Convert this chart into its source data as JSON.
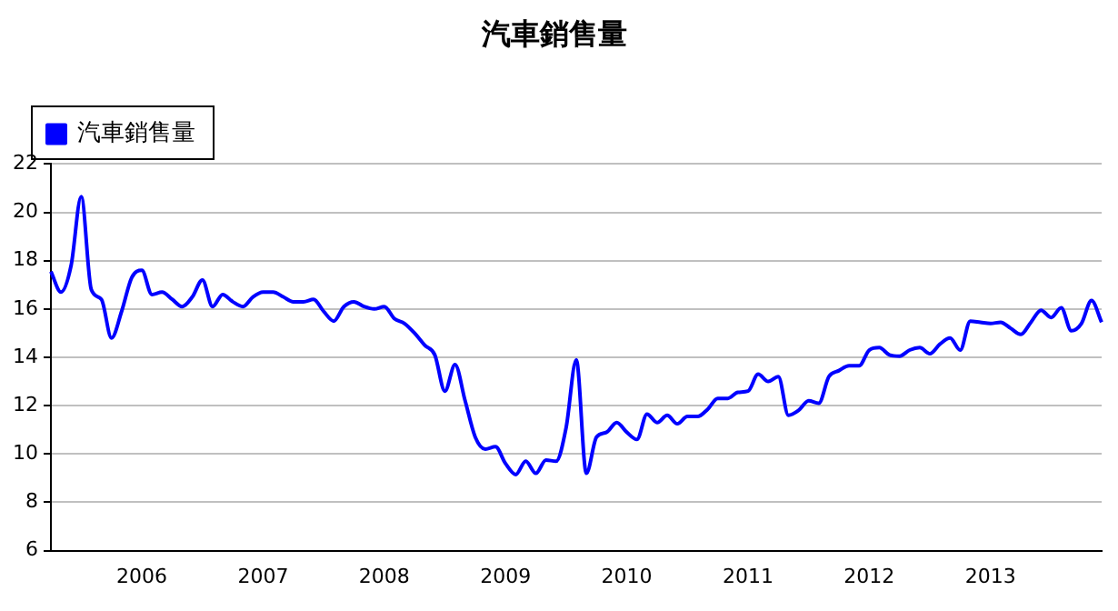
{
  "chart_data": {
    "type": "line",
    "title": "汽車銷售量",
    "categories": [
      null,
      null,
      null,
      null,
      null,
      null,
      null,
      null,
      null,
      "2006",
      null,
      null,
      null,
      null,
      null,
      null,
      null,
      null,
      null,
      null,
      null,
      "2007",
      null,
      null,
      null,
      null,
      null,
      null,
      null,
      null,
      null,
      null,
      null,
      "2008",
      null,
      null,
      null,
      null,
      null,
      null,
      null,
      null,
      null,
      null,
      null,
      "2009",
      null,
      null,
      null,
      null,
      null,
      null,
      null,
      null,
      null,
      null,
      null,
      "2010",
      null,
      null,
      null,
      null,
      null,
      null,
      null,
      null,
      null,
      null,
      null,
      "2011",
      null,
      null,
      null,
      null,
      null,
      null,
      null,
      null,
      null,
      null,
      null,
      "2012",
      null,
      null,
      null,
      null,
      null,
      null,
      null,
      null,
      null,
      null,
      null,
      "2013",
      null,
      null,
      null,
      null,
      null,
      null,
      null,
      null,
      null,
      null,
      null
    ],
    "series": [
      {
        "name": "汽車銷售量",
        "color": "#0000ff",
        "values": [
          17.55,
          16.7,
          17.8,
          20.65,
          16.8,
          16.4,
          14.8,
          15.9,
          17.3,
          17.6,
          16.6,
          16.7,
          16.4,
          16.1,
          16.5,
          17.2,
          16.1,
          16.6,
          16.3,
          16.1,
          16.5,
          16.7,
          16.7,
          16.5,
          16.3,
          16.3,
          16.4,
          15.9,
          15.5,
          16.1,
          16.3,
          16.1,
          16.0,
          16.1,
          15.6,
          15.4,
          15.0,
          14.5,
          14.1,
          12.6,
          13.7,
          12.2,
          10.7,
          10.2,
          10.3,
          9.6,
          9.15,
          9.7,
          9.2,
          9.75,
          9.7,
          11.1,
          13.9,
          9.2,
          10.7,
          10.9,
          11.3,
          10.9,
          10.6,
          11.65,
          11.3,
          11.6,
          11.25,
          11.55,
          11.55,
          11.85,
          12.3,
          12.3,
          12.55,
          12.6,
          13.3,
          13.0,
          13.2,
          11.6,
          11.8,
          12.2,
          12.1,
          13.2,
          13.45,
          13.65,
          13.65,
          14.3,
          14.4,
          14.1,
          14.05,
          14.3,
          14.4,
          14.15,
          14.55,
          14.8,
          14.3,
          15.5,
          15.45,
          15.4,
          15.45,
          15.2,
          14.95,
          15.45,
          15.95,
          15.65,
          16.05,
          15.1,
          15.4,
          16.35,
          15.45
        ]
      }
    ],
    "ylim": [
      6,
      22
    ],
    "yticks": [
      6,
      8,
      10,
      12,
      14,
      16,
      18,
      20,
      22
    ],
    "grid": "y",
    "legend": "top left",
    "marker": "none",
    "line_style": "solid"
  }
}
